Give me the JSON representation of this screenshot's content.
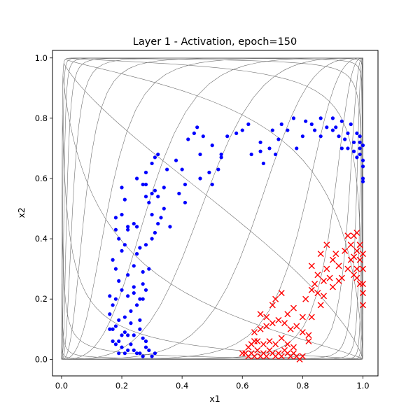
{
  "chart_data": {
    "type": "scatter",
    "title": "Layer 1 - Activation, epoch=150",
    "xlabel": "x1",
    "ylabel": "x2",
    "xlim": [
      -0.03,
      1.05
    ],
    "ylim": [
      -0.055,
      1.025
    ],
    "xticks": [
      "0.0",
      "0.2",
      "0.4",
      "0.6",
      "0.8",
      "1.0"
    ],
    "yticks": [
      "0.0",
      "0.2",
      "0.4",
      "0.6",
      "0.8",
      "1.0"
    ],
    "grid": false,
    "legend": "none",
    "overlay": "warped grid mesh (sigmoid activation of a regular input grid)",
    "series": [
      {
        "marker": "dot",
        "color": "#0000ff",
        "points": [
          [
            0.16,
            0.1
          ],
          [
            0.17,
            0.1
          ],
          [
            0.18,
            0.11
          ],
          [
            0.16,
            0.15
          ],
          [
            0.17,
            0.06
          ],
          [
            0.18,
            0.05
          ],
          [
            0.2,
            0.04
          ],
          [
            0.19,
            0.02
          ],
          [
            0.21,
            0.02
          ],
          [
            0.22,
            0.03
          ],
          [
            0.23,
            0.05
          ],
          [
            0.24,
            0.03
          ],
          [
            0.25,
            0.02
          ],
          [
            0.26,
            0.02
          ],
          [
            0.27,
            0.01
          ],
          [
            0.28,
            0.04
          ],
          [
            0.29,
            0.03
          ],
          [
            0.3,
            0.01
          ],
          [
            0.31,
            0.02
          ],
          [
            0.2,
            0.08
          ],
          [
            0.22,
            0.08
          ],
          [
            0.24,
            0.08
          ],
          [
            0.26,
            0.1
          ],
          [
            0.27,
            0.07
          ],
          [
            0.28,
            0.06
          ],
          [
            0.19,
            0.13
          ],
          [
            0.21,
            0.14
          ],
          [
            0.23,
            0.16
          ],
          [
            0.25,
            0.18
          ],
          [
            0.26,
            0.13
          ],
          [
            0.16,
            0.21
          ],
          [
            0.18,
            0.2
          ],
          [
            0.2,
            0.23
          ],
          [
            0.22,
            0.21
          ],
          [
            0.24,
            0.24
          ],
          [
            0.27,
            0.25
          ],
          [
            0.28,
            0.23
          ],
          [
            0.27,
            0.29
          ],
          [
            0.29,
            0.3
          ],
          [
            0.24,
            0.31
          ],
          [
            0.22,
            0.28
          ],
          [
            0.18,
            0.3
          ],
          [
            0.17,
            0.33
          ],
          [
            0.2,
            0.36
          ],
          [
            0.21,
            0.38
          ],
          [
            0.25,
            0.35
          ],
          [
            0.26,
            0.37
          ],
          [
            0.28,
            0.38
          ],
          [
            0.3,
            0.4
          ],
          [
            0.31,
            0.42
          ],
          [
            0.18,
            0.43
          ],
          [
            0.19,
            0.4
          ],
          [
            0.22,
            0.44
          ],
          [
            0.24,
            0.45
          ],
          [
            0.25,
            0.44
          ],
          [
            0.32,
            0.45
          ],
          [
            0.33,
            0.47
          ],
          [
            0.18,
            0.47
          ],
          [
            0.2,
            0.48
          ],
          [
            0.22,
            0.43
          ],
          [
            0.29,
            0.52
          ],
          [
            0.3,
            0.55
          ],
          [
            0.31,
            0.56
          ],
          [
            0.32,
            0.54
          ],
          [
            0.34,
            0.57
          ],
          [
            0.28,
            0.54
          ],
          [
            0.27,
            0.58
          ],
          [
            0.25,
            0.6
          ],
          [
            0.2,
            0.57
          ],
          [
            0.21,
            0.53
          ],
          [
            0.28,
            0.62
          ],
          [
            0.3,
            0.65
          ],
          [
            0.31,
            0.67
          ],
          [
            0.32,
            0.68
          ],
          [
            0.35,
            0.63
          ],
          [
            0.38,
            0.66
          ],
          [
            0.4,
            0.63
          ],
          [
            0.41,
            0.58
          ],
          [
            0.39,
            0.55
          ],
          [
            0.41,
            0.52
          ],
          [
            0.46,
            0.6
          ],
          [
            0.49,
            0.62
          ],
          [
            0.52,
            0.63
          ],
          [
            0.53,
            0.67
          ],
          [
            0.5,
            0.58
          ],
          [
            0.46,
            0.68
          ],
          [
            0.5,
            0.71
          ],
          [
            0.53,
            0.68
          ],
          [
            0.55,
            0.74
          ],
          [
            0.58,
            0.75
          ],
          [
            0.6,
            0.76
          ],
          [
            0.62,
            0.78
          ],
          [
            0.63,
            0.68
          ],
          [
            0.66,
            0.69
          ],
          [
            0.67,
            0.65
          ],
          [
            0.69,
            0.7
          ],
          [
            0.71,
            0.68
          ],
          [
            0.72,
            0.73
          ],
          [
            0.73,
            0.78
          ],
          [
            0.75,
            0.76
          ],
          [
            0.77,
            0.8
          ],
          [
            0.78,
            0.7
          ],
          [
            0.8,
            0.74
          ],
          [
            0.81,
            0.79
          ],
          [
            0.83,
            0.78
          ],
          [
            0.84,
            0.76
          ],
          [
            0.86,
            0.8
          ],
          [
            0.88,
            0.77
          ],
          [
            0.9,
            0.8
          ],
          [
            0.91,
            0.77
          ],
          [
            0.92,
            0.74
          ],
          [
            0.93,
            0.7
          ],
          [
            0.94,
            0.73
          ],
          [
            0.95,
            0.75
          ],
          [
            0.95,
            0.7
          ],
          [
            0.96,
            0.78
          ],
          [
            0.97,
            0.72
          ],
          [
            0.98,
            0.75
          ],
          [
            0.99,
            0.7
          ],
          [
            0.99,
            0.68
          ],
          [
            1.0,
            0.66
          ],
          [
            1.0,
            0.64
          ],
          [
            1.0,
            0.6
          ],
          [
            1.0,
            0.59
          ],
          [
            0.99,
            0.72
          ],
          [
            0.98,
            0.67
          ],
          [
            0.97,
            0.69
          ],
          [
            0.44,
            0.75
          ],
          [
            0.42,
            0.73
          ],
          [
            0.45,
            0.77
          ],
          [
            0.47,
            0.74
          ],
          [
            0.28,
            0.58
          ],
          [
            0.3,
            0.48
          ],
          [
            0.34,
            0.5
          ],
          [
            0.36,
            0.44
          ],
          [
            0.24,
            0.22
          ],
          [
            0.26,
            0.2
          ],
          [
            0.19,
            0.26
          ],
          [
            0.17,
            0.18
          ],
          [
            0.23,
            0.12
          ],
          [
            0.21,
            0.09
          ],
          [
            0.19,
            0.06
          ],
          [
            0.27,
            0.2
          ],
          [
            0.66,
            0.72
          ],
          [
            0.7,
            0.76
          ],
          [
            0.86,
            0.74
          ],
          [
            0.9,
            0.76
          ],
          [
            0.93,
            0.79
          ],
          [
            0.99,
            0.74
          ],
          [
            1.0,
            0.71
          ]
        ]
      },
      {
        "marker": "x",
        "color": "#ff0000",
        "points": [
          [
            0.61,
            0.02
          ],
          [
            0.62,
            0.01
          ],
          [
            0.63,
            0.02
          ],
          [
            0.64,
            0.01
          ],
          [
            0.65,
            0.03
          ],
          [
            0.66,
            0.01
          ],
          [
            0.67,
            0.02
          ],
          [
            0.68,
            0.01
          ],
          [
            0.69,
            0.03
          ],
          [
            0.7,
            0.02
          ],
          [
            0.71,
            0.01
          ],
          [
            0.72,
            0.02
          ],
          [
            0.73,
            0.01
          ],
          [
            0.74,
            0.03
          ],
          [
            0.75,
            0.02
          ],
          [
            0.76,
            0.01
          ],
          [
            0.77,
            0.02
          ],
          [
            0.78,
            0.01
          ],
          [
            0.79,
            0.0
          ],
          [
            0.8,
            0.01
          ],
          [
            0.63,
            0.05
          ],
          [
            0.65,
            0.06
          ],
          [
            0.67,
            0.05
          ],
          [
            0.69,
            0.06
          ],
          [
            0.71,
            0.05
          ],
          [
            0.73,
            0.07
          ],
          [
            0.75,
            0.05
          ],
          [
            0.77,
            0.04
          ],
          [
            0.64,
            0.09
          ],
          [
            0.66,
            0.1
          ],
          [
            0.68,
            0.11
          ],
          [
            0.7,
            0.12
          ],
          [
            0.72,
            0.13
          ],
          [
            0.74,
            0.12
          ],
          [
            0.76,
            0.1
          ],
          [
            0.78,
            0.11
          ],
          [
            0.8,
            0.09
          ],
          [
            0.82,
            0.08
          ],
          [
            0.66,
            0.15
          ],
          [
            0.68,
            0.14
          ],
          [
            0.7,
            0.18
          ],
          [
            0.71,
            0.2
          ],
          [
            0.73,
            0.22
          ],
          [
            0.75,
            0.15
          ],
          [
            0.77,
            0.17
          ],
          [
            0.8,
            0.14
          ],
          [
            0.81,
            0.2
          ],
          [
            0.83,
            0.23
          ],
          [
            0.84,
            0.25
          ],
          [
            0.85,
            0.22
          ],
          [
            0.86,
            0.18
          ],
          [
            0.87,
            0.26
          ],
          [
            0.88,
            0.3
          ],
          [
            0.89,
            0.27
          ],
          [
            0.9,
            0.33
          ],
          [
            0.91,
            0.35
          ],
          [
            0.92,
            0.31
          ],
          [
            0.93,
            0.27
          ],
          [
            0.94,
            0.36
          ],
          [
            0.95,
            0.3
          ],
          [
            0.96,
            0.33
          ],
          [
            0.96,
            0.38
          ],
          [
            0.97,
            0.41
          ],
          [
            0.98,
            0.36
          ],
          [
            0.98,
            0.3
          ],
          [
            0.98,
            0.27
          ],
          [
            0.99,
            0.33
          ],
          [
            0.99,
            0.25
          ],
          [
            0.99,
            0.38
          ],
          [
            1.0,
            0.35
          ],
          [
            1.0,
            0.3
          ],
          [
            1.0,
            0.25
          ],
          [
            1.0,
            0.22
          ],
          [
            1.0,
            0.18
          ],
          [
            0.98,
            0.42
          ],
          [
            0.97,
            0.34
          ],
          [
            0.97,
            0.28
          ],
          [
            0.86,
            0.35
          ],
          [
            0.88,
            0.38
          ],
          [
            0.83,
            0.31
          ],
          [
            0.85,
            0.28
          ],
          [
            0.95,
            0.41
          ],
          [
            0.92,
            0.26
          ],
          [
            0.9,
            0.24
          ],
          [
            0.87,
            0.21
          ],
          [
            0.82,
            0.06
          ],
          [
            0.83,
            0.14
          ],
          [
            0.62,
            0.04
          ],
          [
            0.64,
            0.06
          ],
          [
            0.6,
            0.02
          ]
        ]
      }
    ]
  }
}
